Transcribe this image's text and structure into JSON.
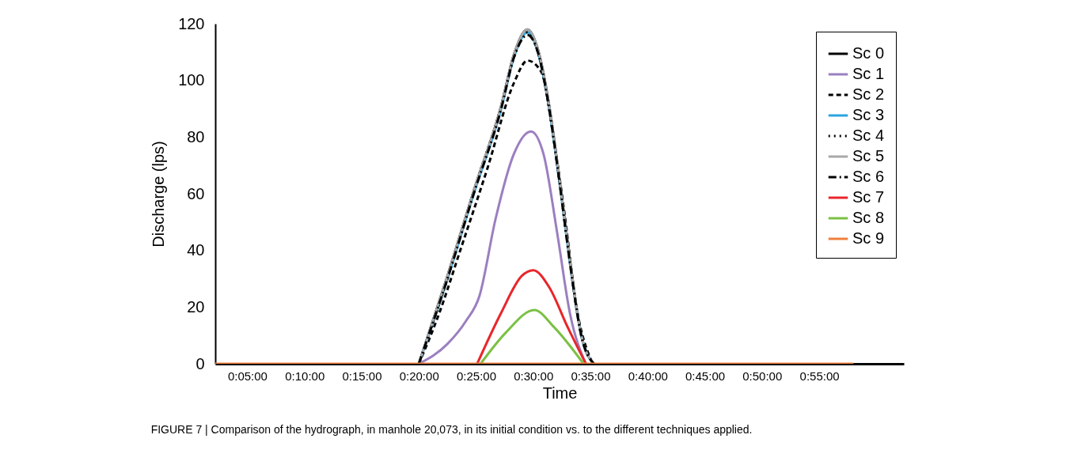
{
  "chart_data": {
    "type": "line",
    "xlabel": "Time",
    "ylabel": "Discharge (lps)",
    "annotations": [
      "FIGURE 7 | Comparison of the hydrograph, in manhole 20,073, in its initial condition vs. to the different techniques applied."
    ],
    "xlim": [
      0.0367,
      1.04
    ],
    "ylim": [
      0,
      120
    ],
    "yticks": [
      0,
      20,
      40,
      60,
      80,
      100,
      120
    ],
    "xticks": [
      {
        "value": 0.0833,
        "label": "0:05:00"
      },
      {
        "value": 0.1667,
        "label": "0:10:00"
      },
      {
        "value": 0.25,
        "label": "0:15:00"
      },
      {
        "value": 0.3333,
        "label": "0:20:00"
      },
      {
        "value": 0.4167,
        "label": "0:25:00"
      },
      {
        "value": 0.5,
        "label": "0:30:00"
      },
      {
        "value": 0.5833,
        "label": "0:35:00"
      },
      {
        "value": 0.6667,
        "label": "0:40:00"
      },
      {
        "value": 0.75,
        "label": "0:45:00"
      },
      {
        "value": 0.8333,
        "label": "0:50:00"
      },
      {
        "value": 0.9167,
        "label": "0:55:00"
      }
    ],
    "grid": false,
    "legend": "top right",
    "marker": "none",
    "series": [
      {
        "name": "Sc 0",
        "color": "#000000",
        "line_style": "solid",
        "x": [
          0.3333,
          0.375,
          0.4133,
          0.4533,
          0.4717,
          0.4917,
          0.5067,
          0.5233,
          0.5383,
          0.5533,
          0.57,
          0.5883
        ],
        "values": [
          0,
          31,
          61,
          91,
          109,
          118,
          111,
          91,
          65,
          37,
          10,
          0
        ]
      },
      {
        "name": "Sc 1",
        "color": "#9b7fc0",
        "line_style": "solid",
        "x": [
          0.3333,
          0.375,
          0.4017,
          0.4217,
          0.445,
          0.4717,
          0.4967,
          0.515,
          0.535,
          0.5533,
          0.5767
        ],
        "values": [
          0,
          7,
          15,
          24,
          51,
          74,
          82,
          74,
          46,
          18,
          0
        ]
      },
      {
        "name": "Sc 2",
        "color": "#000000",
        "line_style": "dashed",
        "x": [
          0.3333,
          0.3633,
          0.395,
          0.4333,
          0.4717,
          0.4917,
          0.5117,
          0.53,
          0.5467,
          0.5617,
          0.5867
        ],
        "values": [
          0,
          18,
          41,
          69,
          99,
          107,
          103,
          79,
          51,
          22,
          0
        ]
      },
      {
        "name": "Sc 3",
        "color": "#2aa4e0",
        "line_style": "solid",
        "x": [
          0.3333,
          0.375,
          0.4133,
          0.4533,
          0.4717,
          0.4917,
          0.5067,
          0.5233,
          0.5383,
          0.5533,
          0.57,
          0.5883
        ],
        "values": [
          0,
          30,
          60,
          90,
          108,
          117,
          110,
          90,
          64,
          36,
          10,
          0
        ]
      },
      {
        "name": "Sc 4",
        "color": "#000000",
        "line_style": "dotted",
        "x": [
          0.3333,
          0.375,
          0.4133,
          0.4533,
          0.4717,
          0.4917,
          0.5067,
          0.5233,
          0.5383,
          0.5533,
          0.57,
          0.5883
        ],
        "values": [
          0,
          30,
          61,
          91,
          108,
          117,
          110,
          90,
          64,
          36,
          10,
          0
        ]
      },
      {
        "name": "Sc 5",
        "color": "#a8a8a8",
        "line_style": "solid",
        "x": [
          0.3333,
          0.375,
          0.4133,
          0.4533,
          0.4717,
          0.4917,
          0.5067,
          0.5233,
          0.5383,
          0.5533,
          0.57,
          0.5883
        ],
        "values": [
          0,
          31,
          61,
          91,
          109,
          118,
          111,
          91,
          65,
          37,
          10,
          0
        ]
      },
      {
        "name": "Sc 6",
        "color": "#000000",
        "line_style": "dashdot",
        "x": [
          0.3333,
          0.375,
          0.4133,
          0.4533,
          0.4717,
          0.4917,
          0.5067,
          0.5233,
          0.5383,
          0.5533,
          0.57,
          0.5883
        ],
        "values": [
          0,
          30,
          60,
          90,
          108,
          116,
          110,
          90,
          64,
          36,
          10,
          0
        ]
      },
      {
        "name": "Sc 7",
        "color": "#e8262a",
        "line_style": "solid",
        "x": [
          0.4183,
          0.4533,
          0.4833,
          0.5,
          0.5233,
          0.55,
          0.5767
        ],
        "values": [
          0,
          18,
          31,
          33,
          27,
          13,
          0
        ]
      },
      {
        "name": "Sc 8",
        "color": "#7ac143",
        "line_style": "solid",
        "x": [
          0.4233,
          0.46,
          0.5017,
          0.53,
          0.5733
        ],
        "values": [
          0,
          11,
          19,
          13,
          0
        ]
      },
      {
        "name": "Sc 9",
        "color": "#f07f3c",
        "line_style": "solid",
        "x": [
          0.0367,
          0.9667
        ],
        "values": [
          0,
          0
        ]
      }
    ]
  }
}
